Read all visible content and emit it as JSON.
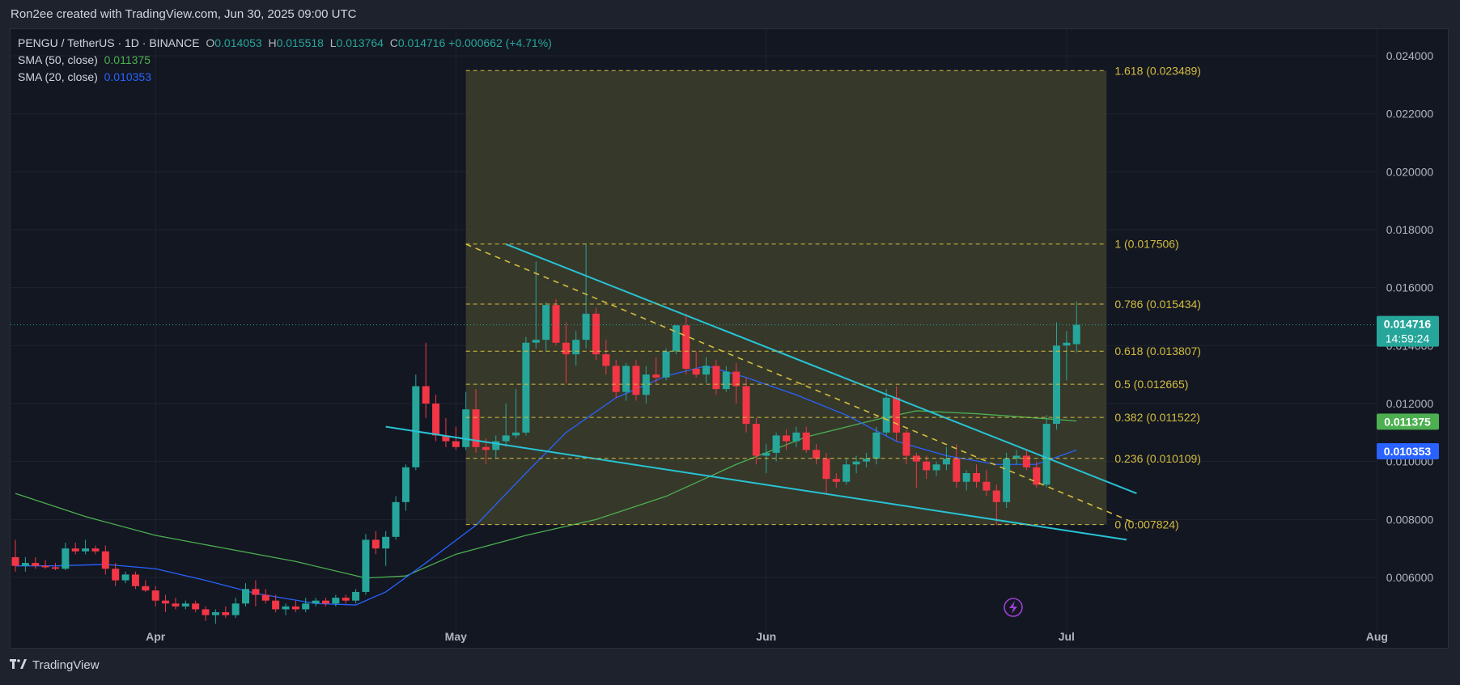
{
  "header": {
    "caption": "Ron2ee created with TradingView.com, Jun 30, 2025 09:00 UTC"
  },
  "legend": {
    "symbol": "PENGU / TetherUS · 1D · BINANCE",
    "o_label": "O",
    "o_value": "0.014053",
    "h_label": "H",
    "h_value": "0.015518",
    "l_label": "L",
    "l_value": "0.013764",
    "c_label": "C",
    "c_value": "0.014716",
    "change": "+0.000662 (+4.71%)",
    "sma50_label": "SMA (50, close)",
    "sma50_value": "0.011375",
    "sma20_label": "SMA (20, close)",
    "sma20_value": "0.010353"
  },
  "footer": {
    "brand": "TradingView"
  },
  "price_badges": {
    "last": "0.014716",
    "countdown": "14:59:24",
    "sma50": "0.011375",
    "sma20": "0.010353"
  },
  "colors": {
    "up": "#26a69a",
    "down": "#f23645",
    "sma50": "#4caf50",
    "sma20": "#2962ff",
    "trendline": "#28c3d4",
    "fib": "#d4bd3f",
    "fib_zone": "#3d3e2c",
    "background": "#131722"
  },
  "chart_data": {
    "type": "candlestick",
    "title": "PENGU / TetherUS · 1D · BINANCE",
    "y_range": [
      0.005,
      0.025
    ],
    "y_ticks": [
      "0.024000",
      "0.022000",
      "0.020000",
      "0.018000",
      "0.016000",
      "0.014000",
      "0.012000",
      "0.010000",
      "0.008000",
      "0.006000"
    ],
    "x_ticks": [
      {
        "label": "Apr",
        "date": "2025-04-01"
      },
      {
        "label": "May",
        "date": "2025-05-01"
      },
      {
        "label": "Jun",
        "date": "2025-06-01"
      },
      {
        "label": "Jul",
        "date": "2025-07-01"
      },
      {
        "label": "Aug",
        "date": "2025-08-01"
      }
    ],
    "x_range": [
      "2025-03-18",
      "2025-08-10"
    ],
    "candles": [
      {
        "d": "2025-03-18",
        "o": 0.0067,
        "h": 0.0073,
        "l": 0.0062,
        "c": 0.0064
      },
      {
        "d": "2025-03-19",
        "o": 0.0064,
        "h": 0.0067,
        "l": 0.0062,
        "c": 0.0065
      },
      {
        "d": "2025-03-20",
        "o": 0.0065,
        "h": 0.0067,
        "l": 0.0063,
        "c": 0.0064
      },
      {
        "d": "2025-03-21",
        "o": 0.0064,
        "h": 0.0066,
        "l": 0.0063,
        "c": 0.00635
      },
      {
        "d": "2025-03-22",
        "o": 0.00635,
        "h": 0.0065,
        "l": 0.00625,
        "c": 0.0063
      },
      {
        "d": "2025-03-23",
        "o": 0.0063,
        "h": 0.0072,
        "l": 0.00625,
        "c": 0.007
      },
      {
        "d": "2025-03-24",
        "o": 0.007,
        "h": 0.0072,
        "l": 0.0068,
        "c": 0.0069
      },
      {
        "d": "2025-03-25",
        "o": 0.0069,
        "h": 0.0073,
        "l": 0.0068,
        "c": 0.007
      },
      {
        "d": "2025-03-26",
        "o": 0.007,
        "h": 0.0071,
        "l": 0.0068,
        "c": 0.0069
      },
      {
        "d": "2025-03-27",
        "o": 0.0069,
        "h": 0.0071,
        "l": 0.0061,
        "c": 0.0063
      },
      {
        "d": "2025-03-28",
        "o": 0.0063,
        "h": 0.0065,
        "l": 0.0057,
        "c": 0.0059
      },
      {
        "d": "2025-03-29",
        "o": 0.0059,
        "h": 0.0062,
        "l": 0.0058,
        "c": 0.0061
      },
      {
        "d": "2025-03-30",
        "o": 0.0061,
        "h": 0.0062,
        "l": 0.0056,
        "c": 0.0057
      },
      {
        "d": "2025-03-31",
        "o": 0.0057,
        "h": 0.0059,
        "l": 0.0055,
        "c": 0.00555
      },
      {
        "d": "2025-04-01",
        "o": 0.00555,
        "h": 0.0057,
        "l": 0.005,
        "c": 0.0052
      },
      {
        "d": "2025-04-02",
        "o": 0.0052,
        "h": 0.0054,
        "l": 0.0048,
        "c": 0.0051
      },
      {
        "d": "2025-04-03",
        "o": 0.0051,
        "h": 0.0053,
        "l": 0.0049,
        "c": 0.005
      },
      {
        "d": "2025-04-04",
        "o": 0.005,
        "h": 0.0052,
        "l": 0.0049,
        "c": 0.0051
      },
      {
        "d": "2025-04-05",
        "o": 0.0051,
        "h": 0.0052,
        "l": 0.0048,
        "c": 0.0049
      },
      {
        "d": "2025-04-06",
        "o": 0.0049,
        "h": 0.005,
        "l": 0.0045,
        "c": 0.0047
      },
      {
        "d": "2025-04-07",
        "o": 0.0047,
        "h": 0.0049,
        "l": 0.0044,
        "c": 0.0048
      },
      {
        "d": "2025-04-08",
        "o": 0.0048,
        "h": 0.005,
        "l": 0.0046,
        "c": 0.0047
      },
      {
        "d": "2025-04-09",
        "o": 0.0047,
        "h": 0.0053,
        "l": 0.0046,
        "c": 0.0051
      },
      {
        "d": "2025-04-10",
        "o": 0.0051,
        "h": 0.0058,
        "l": 0.005,
        "c": 0.0056
      },
      {
        "d": "2025-04-11",
        "o": 0.0056,
        "h": 0.0059,
        "l": 0.005,
        "c": 0.0054
      },
      {
        "d": "2025-04-12",
        "o": 0.0054,
        "h": 0.0056,
        "l": 0.0051,
        "c": 0.0052
      },
      {
        "d": "2025-04-13",
        "o": 0.0052,
        "h": 0.0054,
        "l": 0.0048,
        "c": 0.0049
      },
      {
        "d": "2025-04-14",
        "o": 0.0049,
        "h": 0.0051,
        "l": 0.0047,
        "c": 0.005
      },
      {
        "d": "2025-04-15",
        "o": 0.005,
        "h": 0.0052,
        "l": 0.0048,
        "c": 0.0049
      },
      {
        "d": "2025-04-16",
        "o": 0.0049,
        "h": 0.0053,
        "l": 0.0048,
        "c": 0.0051
      },
      {
        "d": "2025-04-17",
        "o": 0.0051,
        "h": 0.0053,
        "l": 0.005,
        "c": 0.0052
      },
      {
        "d": "2025-04-18",
        "o": 0.0052,
        "h": 0.0053,
        "l": 0.005,
        "c": 0.0051
      },
      {
        "d": "2025-04-19",
        "o": 0.0051,
        "h": 0.0054,
        "l": 0.005,
        "c": 0.0053
      },
      {
        "d": "2025-04-20",
        "o": 0.0053,
        "h": 0.0054,
        "l": 0.0051,
        "c": 0.0052
      },
      {
        "d": "2025-04-21",
        "o": 0.0052,
        "h": 0.0056,
        "l": 0.0051,
        "c": 0.0055
      },
      {
        "d": "2025-04-22",
        "o": 0.0055,
        "h": 0.0075,
        "l": 0.0054,
        "c": 0.0073
      },
      {
        "d": "2025-04-23",
        "o": 0.0073,
        "h": 0.0076,
        "l": 0.0068,
        "c": 0.007
      },
      {
        "d": "2025-04-24",
        "o": 0.007,
        "h": 0.0076,
        "l": 0.0064,
        "c": 0.0074
      },
      {
        "d": "2025-04-25",
        "o": 0.0074,
        "h": 0.0088,
        "l": 0.0073,
        "c": 0.0086
      },
      {
        "d": "2025-04-26",
        "o": 0.0086,
        "h": 0.0099,
        "l": 0.0083,
        "c": 0.0098
      },
      {
        "d": "2025-04-27",
        "o": 0.0098,
        "h": 0.013,
        "l": 0.0097,
        "c": 0.0126
      },
      {
        "d": "2025-04-28",
        "o": 0.0126,
        "h": 0.0141,
        "l": 0.0115,
        "c": 0.012
      },
      {
        "d": "2025-04-29",
        "o": 0.012,
        "h": 0.0123,
        "l": 0.0107,
        "c": 0.0109
      },
      {
        "d": "2025-04-30",
        "o": 0.0109,
        "h": 0.0115,
        "l": 0.0105,
        "c": 0.0107
      },
      {
        "d": "2025-05-01",
        "o": 0.0107,
        "h": 0.0112,
        "l": 0.0104,
        "c": 0.0105
      },
      {
        "d": "2025-05-02",
        "o": 0.0105,
        "h": 0.0124,
        "l": 0.0104,
        "c": 0.0118
      },
      {
        "d": "2025-05-03",
        "o": 0.0118,
        "h": 0.0125,
        "l": 0.0103,
        "c": 0.0105
      },
      {
        "d": "2025-05-04",
        "o": 0.0105,
        "h": 0.0108,
        "l": 0.0099,
        "c": 0.0104
      },
      {
        "d": "2025-05-05",
        "o": 0.0104,
        "h": 0.0109,
        "l": 0.0101,
        "c": 0.0107
      },
      {
        "d": "2025-05-06",
        "o": 0.0107,
        "h": 0.012,
        "l": 0.0105,
        "c": 0.0109
      },
      {
        "d": "2025-05-07",
        "o": 0.0109,
        "h": 0.0125,
        "l": 0.0108,
        "c": 0.011
      },
      {
        "d": "2025-05-08",
        "o": 0.011,
        "h": 0.0143,
        "l": 0.0109,
        "c": 0.0141
      },
      {
        "d": "2025-05-09",
        "o": 0.0141,
        "h": 0.0169,
        "l": 0.0139,
        "c": 0.0142
      },
      {
        "d": "2025-05-10",
        "o": 0.0142,
        "h": 0.0155,
        "l": 0.0138,
        "c": 0.0154
      },
      {
        "d": "2025-05-11",
        "o": 0.0154,
        "h": 0.0156,
        "l": 0.014,
        "c": 0.0141
      },
      {
        "d": "2025-05-12",
        "o": 0.0141,
        "h": 0.0148,
        "l": 0.0127,
        "c": 0.0137
      },
      {
        "d": "2025-05-13",
        "o": 0.0137,
        "h": 0.0145,
        "l": 0.0133,
        "c": 0.0142
      },
      {
        "d": "2025-05-14",
        "o": 0.0142,
        "h": 0.0175,
        "l": 0.0139,
        "c": 0.0151
      },
      {
        "d": "2025-05-15",
        "o": 0.0151,
        "h": 0.0153,
        "l": 0.0135,
        "c": 0.0137
      },
      {
        "d": "2025-05-16",
        "o": 0.0137,
        "h": 0.0142,
        "l": 0.013,
        "c": 0.0133
      },
      {
        "d": "2025-05-17",
        "o": 0.0133,
        "h": 0.0135,
        "l": 0.0122,
        "c": 0.0124
      },
      {
        "d": "2025-05-18",
        "o": 0.0124,
        "h": 0.0134,
        "l": 0.0121,
        "c": 0.0133
      },
      {
        "d": "2025-05-19",
        "o": 0.0133,
        "h": 0.0135,
        "l": 0.0121,
        "c": 0.0123
      },
      {
        "d": "2025-05-20",
        "o": 0.0123,
        "h": 0.0133,
        "l": 0.012,
        "c": 0.013
      },
      {
        "d": "2025-05-21",
        "o": 0.013,
        "h": 0.0136,
        "l": 0.0127,
        "c": 0.0129
      },
      {
        "d": "2025-05-22",
        "o": 0.0129,
        "h": 0.0139,
        "l": 0.0128,
        "c": 0.0138
      },
      {
        "d": "2025-05-23",
        "o": 0.0138,
        "h": 0.0147,
        "l": 0.0137,
        "c": 0.0147
      },
      {
        "d": "2025-05-24",
        "o": 0.0147,
        "h": 0.0151,
        "l": 0.013,
        "c": 0.0132
      },
      {
        "d": "2025-05-25",
        "o": 0.0132,
        "h": 0.0138,
        "l": 0.0129,
        "c": 0.013
      },
      {
        "d": "2025-05-26",
        "o": 0.013,
        "h": 0.0136,
        "l": 0.0127,
        "c": 0.0133
      },
      {
        "d": "2025-05-27",
        "o": 0.0133,
        "h": 0.0135,
        "l": 0.0123,
        "c": 0.0125
      },
      {
        "d": "2025-05-28",
        "o": 0.0125,
        "h": 0.0133,
        "l": 0.0124,
        "c": 0.0131
      },
      {
        "d": "2025-05-29",
        "o": 0.0131,
        "h": 0.0134,
        "l": 0.012,
        "c": 0.0126
      },
      {
        "d": "2025-05-30",
        "o": 0.0126,
        "h": 0.0129,
        "l": 0.011,
        "c": 0.0113
      },
      {
        "d": "2025-05-31",
        "o": 0.0113,
        "h": 0.0115,
        "l": 0.0099,
        "c": 0.0102
      },
      {
        "d": "2025-06-01",
        "o": 0.0102,
        "h": 0.0106,
        "l": 0.0096,
        "c": 0.0103
      },
      {
        "d": "2025-06-02",
        "o": 0.0103,
        "h": 0.011,
        "l": 0.01,
        "c": 0.0109
      },
      {
        "d": "2025-06-03",
        "o": 0.0109,
        "h": 0.0111,
        "l": 0.0104,
        "c": 0.0107
      },
      {
        "d": "2025-06-04",
        "o": 0.0107,
        "h": 0.0112,
        "l": 0.0105,
        "c": 0.011
      },
      {
        "d": "2025-06-05",
        "o": 0.011,
        "h": 0.0112,
        "l": 0.0103,
        "c": 0.0104
      },
      {
        "d": "2025-06-06",
        "o": 0.0104,
        "h": 0.0106,
        "l": 0.0099,
        "c": 0.0101
      },
      {
        "d": "2025-06-07",
        "o": 0.0101,
        "h": 0.0103,
        "l": 0.0089,
        "c": 0.0094
      },
      {
        "d": "2025-06-08",
        "o": 0.0094,
        "h": 0.0096,
        "l": 0.0091,
        "c": 0.0093
      },
      {
        "d": "2025-06-09",
        "o": 0.0093,
        "h": 0.0101,
        "l": 0.0092,
        "c": 0.0099
      },
      {
        "d": "2025-06-10",
        "o": 0.0099,
        "h": 0.0102,
        "l": 0.0096,
        "c": 0.01
      },
      {
        "d": "2025-06-11",
        "o": 0.01,
        "h": 0.0103,
        "l": 0.0098,
        "c": 0.0101
      },
      {
        "d": "2025-06-12",
        "o": 0.0101,
        "h": 0.0112,
        "l": 0.0099,
        "c": 0.011
      },
      {
        "d": "2025-06-13",
        "o": 0.011,
        "h": 0.0125,
        "l": 0.0109,
        "c": 0.0122
      },
      {
        "d": "2025-06-14",
        "o": 0.0122,
        "h": 0.0126,
        "l": 0.0107,
        "c": 0.011
      },
      {
        "d": "2025-06-15",
        "o": 0.011,
        "h": 0.0111,
        "l": 0.0099,
        "c": 0.0102
      },
      {
        "d": "2025-06-16",
        "o": 0.0102,
        "h": 0.0103,
        "l": 0.0091,
        "c": 0.01
      },
      {
        "d": "2025-06-17",
        "o": 0.01,
        "h": 0.0102,
        "l": 0.0094,
        "c": 0.0097
      },
      {
        "d": "2025-06-18",
        "o": 0.0097,
        "h": 0.01,
        "l": 0.0095,
        "c": 0.0099
      },
      {
        "d": "2025-06-19",
        "o": 0.0099,
        "h": 0.0105,
        "l": 0.0097,
        "c": 0.0101
      },
      {
        "d": "2025-06-20",
        "o": 0.0101,
        "h": 0.0106,
        "l": 0.0091,
        "c": 0.0093
      },
      {
        "d": "2025-06-21",
        "o": 0.0093,
        "h": 0.0097,
        "l": 0.009,
        "c": 0.0096
      },
      {
        "d": "2025-06-22",
        "o": 0.0096,
        "h": 0.0099,
        "l": 0.0091,
        "c": 0.0093
      },
      {
        "d": "2025-06-23",
        "o": 0.0093,
        "h": 0.0097,
        "l": 0.0088,
        "c": 0.009
      },
      {
        "d": "2025-06-24",
        "o": 0.009,
        "h": 0.0092,
        "l": 0.0078,
        "c": 0.0086
      },
      {
        "d": "2025-06-25",
        "o": 0.0086,
        "h": 0.0103,
        "l": 0.0084,
        "c": 0.0101
      },
      {
        "d": "2025-06-26",
        "o": 0.0101,
        "h": 0.0104,
        "l": 0.0099,
        "c": 0.0102
      },
      {
        "d": "2025-06-27",
        "o": 0.0102,
        "h": 0.0104,
        "l": 0.0097,
        "c": 0.0098
      },
      {
        "d": "2025-06-28",
        "o": 0.0098,
        "h": 0.01,
        "l": 0.0091,
        "c": 0.0092
      },
      {
        "d": "2025-06-29",
        "o": 0.0092,
        "h": 0.0116,
        "l": 0.0091,
        "c": 0.0113
      },
      {
        "d": "2025-06-30",
        "o": 0.0113,
        "h": 0.0148,
        "l": 0.0111,
        "c": 0.014
      },
      {
        "d": "2025-07-01",
        "o": 0.014,
        "h": 0.0145,
        "l": 0.0128,
        "c": 0.0141
      },
      {
        "d": "2025-07-02",
        "o": 0.01405,
        "h": 0.01552,
        "l": 0.01376,
        "c": 0.01472
      }
    ],
    "sma50": [
      [
        "2025-03-18",
        0.0089
      ],
      [
        "2025-03-25",
        0.0081
      ],
      [
        "2025-04-01",
        0.00745
      ],
      [
        "2025-04-08",
        0.007
      ],
      [
        "2025-04-15",
        0.00655
      ],
      [
        "2025-04-22",
        0.00598
      ],
      [
        "2025-04-26",
        0.00605
      ],
      [
        "2025-05-01",
        0.0068
      ],
      [
        "2025-05-08",
        0.00745
      ],
      [
        "2025-05-15",
        0.008
      ],
      [
        "2025-05-22",
        0.0088
      ],
      [
        "2025-05-29",
        0.0099
      ],
      [
        "2025-06-05",
        0.01085
      ],
      [
        "2025-06-12",
        0.01145
      ],
      [
        "2025-06-16",
        0.01175
      ],
      [
        "2025-06-22",
        0.01165
      ],
      [
        "2025-06-28",
        0.0115
      ],
      [
        "2025-07-02",
        0.0114
      ]
    ],
    "sma20": [
      [
        "2025-03-18",
        0.0064
      ],
      [
        "2025-03-22",
        0.0064
      ],
      [
        "2025-03-27",
        0.00645
      ],
      [
        "2025-04-01",
        0.0063
      ],
      [
        "2025-04-06",
        0.0059
      ],
      [
        "2025-04-11",
        0.00545
      ],
      [
        "2025-04-17",
        0.0051
      ],
      [
        "2025-04-21",
        0.00505
      ],
      [
        "2025-04-24",
        0.0055
      ],
      [
        "2025-04-28",
        0.0065
      ],
      [
        "2025-05-03",
        0.0078
      ],
      [
        "2025-05-08",
        0.0096
      ],
      [
        "2025-05-12",
        0.011
      ],
      [
        "2025-05-17",
        0.0122
      ],
      [
        "2025-05-22",
        0.01295
      ],
      [
        "2025-05-26",
        0.0133
      ],
      [
        "2025-05-30",
        0.0129
      ],
      [
        "2025-06-04",
        0.0123
      ],
      [
        "2025-06-09",
        0.0116
      ],
      [
        "2025-06-14",
        0.0107
      ],
      [
        "2025-06-19",
        0.0102
      ],
      [
        "2025-06-24",
        0.0099
      ],
      [
        "2025-06-28",
        0.0099
      ],
      [
        "2025-07-02",
        0.0104
      ]
    ],
    "fib_levels": [
      {
        "ratio": "1.618",
        "price": 0.023489,
        "label": "1.618 (0.023489)"
      },
      {
        "ratio": "1",
        "price": 0.017506,
        "label": "1 (0.017506)"
      },
      {
        "ratio": "0.786",
        "price": 0.015434,
        "label": "0.786 (0.015434)"
      },
      {
        "ratio": "0.618",
        "price": 0.013807,
        "label": "0.618 (0.013807)"
      },
      {
        "ratio": "0.5",
        "price": 0.012665,
        "label": "0.5 (0.012665)"
      },
      {
        "ratio": "0.382",
        "price": 0.011522,
        "label": "0.382 (0.011522)"
      },
      {
        "ratio": "0.236",
        "price": 0.010109,
        "label": "0.236 (0.010109)"
      },
      {
        "ratio": "0",
        "price": 0.007824,
        "label": "0 (0.007824)"
      }
    ],
    "fib_zone": {
      "x_start": "2025-05-02",
      "x_end": "2025-07-05"
    },
    "trendlines": [
      {
        "from": [
          "2025-05-06",
          0.0175
        ],
        "to": [
          "2025-07-08",
          0.0089
        ]
      },
      {
        "from": [
          "2025-04-24",
          0.0112
        ],
        "to": [
          "2025-07-07",
          0.0073
        ]
      }
    ],
    "dashed_diagonal": {
      "from": [
        "2025-05-02",
        0.0175
      ],
      "to": [
        "2025-07-08",
        0.00785
      ]
    }
  }
}
